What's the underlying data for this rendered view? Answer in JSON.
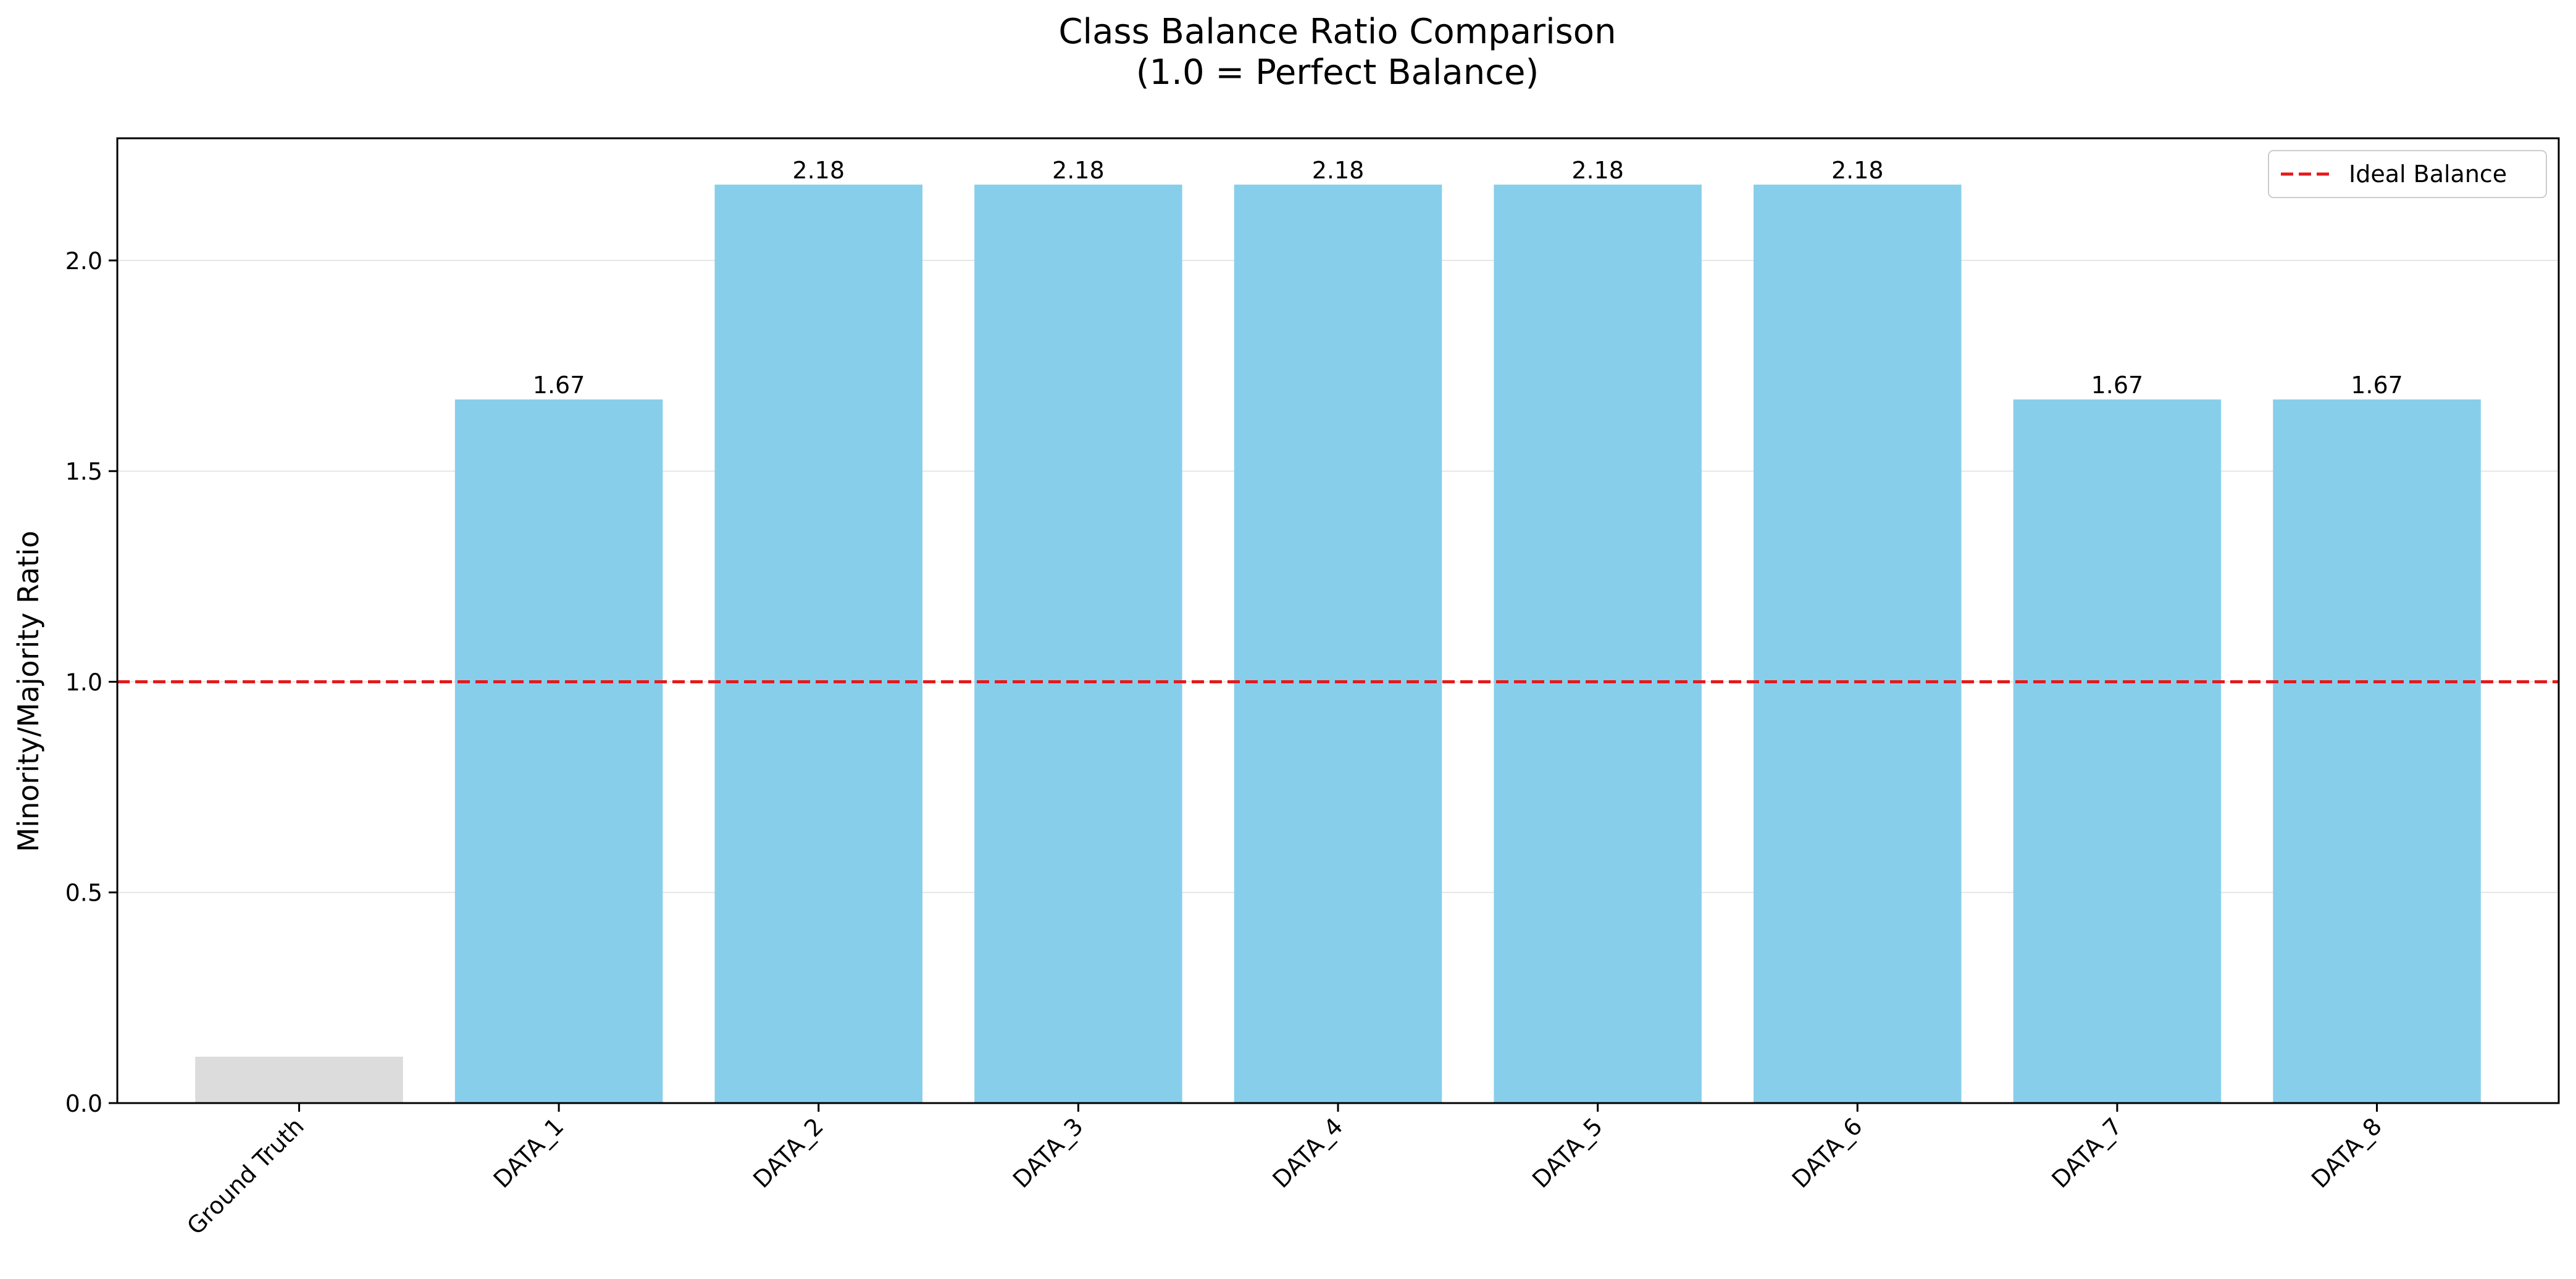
{
  "chart_data": {
    "type": "bar",
    "title": "Class Balance Ratio Comparison",
    "subtitle": "(1.0 = Perfect Balance)",
    "xlabel": "",
    "ylabel": "Minority/Majority Ratio",
    "categories": [
      "Ground Truth",
      "DATA_1",
      "DATA_2",
      "DATA_3",
      "DATA_4",
      "DATA_5",
      "DATA_6",
      "DATA_7",
      "DATA_8"
    ],
    "values": [
      0.11,
      1.67,
      2.18,
      2.18,
      2.18,
      2.18,
      2.18,
      1.67,
      1.67
    ],
    "value_labels": [
      "",
      "1.67",
      "2.18",
      "2.18",
      "2.18",
      "2.18",
      "2.18",
      "1.67",
      "1.67"
    ],
    "bar_colors": [
      "#dcdcdc",
      "#87ceeb",
      "#87ceeb",
      "#87ceeb",
      "#87ceeb",
      "#87ceeb",
      "#87ceeb",
      "#87ceeb",
      "#87ceeb"
    ],
    "ylim": [
      0,
      2.29
    ],
    "yticks": [
      0.0,
      0.5,
      1.0,
      1.5,
      2.0
    ],
    "ytick_labels": [
      "0.0",
      "0.5",
      "1.0",
      "1.5",
      "2.0"
    ],
    "reference_line": {
      "value": 1.0,
      "label": "Ideal Balance",
      "color": "#e41a1c",
      "style": "dashed"
    },
    "legend": {
      "position": "top-right",
      "entries": [
        "Ideal Balance"
      ]
    },
    "grid": {
      "y": true,
      "x": false
    },
    "x_tick_rotation": 45
  }
}
